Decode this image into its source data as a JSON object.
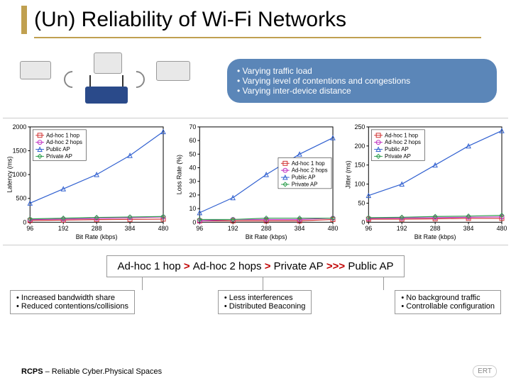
{
  "title": "(Un) Reliability of  Wi-Fi Networks",
  "callout": {
    "items": [
      "Varying traffic load",
      "Varying level of contentions and congestions",
      "Varying inter-device distance"
    ],
    "bg": "#5b86b8"
  },
  "charts": [
    {
      "ylabel": "Latency (ms)",
      "xlabel": "Bit Rate (kbps)",
      "ylim": [
        0,
        2000
      ],
      "yticks": [
        0,
        500,
        1000,
        1500,
        2000
      ],
      "xlim": [
        96,
        480
      ],
      "xticks": [
        96,
        192,
        288,
        384,
        480
      ],
      "legend_pos": "top-left",
      "series": [
        {
          "name": "Ad-hoc 1 hop",
          "color": "#d03030",
          "marker": "square",
          "data": [
            [
              96,
              35
            ],
            [
              192,
              45
            ],
            [
              288,
              55
            ],
            [
              384,
              60
            ],
            [
              480,
              65
            ]
          ]
        },
        {
          "name": "Ad-hoc 2 hops",
          "color": "#c030c0",
          "marker": "circle",
          "data": [
            [
              96,
              55
            ],
            [
              192,
              65
            ],
            [
              288,
              80
            ],
            [
              384,
              95
            ],
            [
              480,
              110
            ]
          ]
        },
        {
          "name": "Public AP",
          "color": "#3060d0",
          "marker": "triangle",
          "data": [
            [
              96,
              400
            ],
            [
              192,
              700
            ],
            [
              288,
              1000
            ],
            [
              384,
              1400
            ],
            [
              480,
              1900
            ]
          ]
        },
        {
          "name": "Private AP",
          "color": "#30a050",
          "marker": "diamond",
          "data": [
            [
              96,
              70
            ],
            [
              192,
              85
            ],
            [
              288,
              100
            ],
            [
              384,
              110
            ],
            [
              480,
              120
            ]
          ]
        }
      ]
    },
    {
      "ylabel": "Loss Rate (%)",
      "xlabel": "Bit Rate (kbps)",
      "ylim": [
        0,
        70
      ],
      "yticks": [
        0,
        10,
        20,
        30,
        40,
        50,
        60,
        70
      ],
      "xlim": [
        96,
        480
      ],
      "xticks": [
        96,
        192,
        288,
        384,
        480
      ],
      "legend_pos": "mid-right",
      "series": [
        {
          "name": "Ad-hoc 1 hop",
          "color": "#d03030",
          "marker": "square",
          "data": [
            [
              96,
              1
            ],
            [
              192,
              1
            ],
            [
              288,
              1
            ],
            [
              384,
              1
            ],
            [
              480,
              2
            ]
          ]
        },
        {
          "name": "Ad-hoc 2 hops",
          "color": "#c030c0",
          "marker": "circle",
          "data": [
            [
              96,
              1
            ],
            [
              192,
              2
            ],
            [
              288,
              2
            ],
            [
              384,
              2
            ],
            [
              480,
              3
            ]
          ]
        },
        {
          "name": "Public AP",
          "color": "#3060d0",
          "marker": "triangle",
          "data": [
            [
              96,
              7
            ],
            [
              192,
              18
            ],
            [
              288,
              35
            ],
            [
              384,
              50
            ],
            [
              480,
              62
            ]
          ]
        },
        {
          "name": "Private AP",
          "color": "#30a050",
          "marker": "diamond",
          "data": [
            [
              96,
              2
            ],
            [
              192,
              2
            ],
            [
              288,
              3
            ],
            [
              384,
              3
            ],
            [
              480,
              3
            ]
          ]
        }
      ]
    },
    {
      "ylabel": "Jitter (ms)",
      "xlabel": "Bit Rate (kbps)",
      "ylim": [
        0,
        250
      ],
      "yticks": [
        0,
        50,
        100,
        150,
        200,
        250
      ],
      "xlim": [
        96,
        480
      ],
      "xticks": [
        96,
        192,
        288,
        384,
        480
      ],
      "legend_pos": "top-left",
      "series": [
        {
          "name": "Ad-hoc 1 hop",
          "color": "#d03030",
          "marker": "square",
          "data": [
            [
              96,
              8
            ],
            [
              192,
              8
            ],
            [
              288,
              9
            ],
            [
              384,
              10
            ],
            [
              480,
              10
            ]
          ]
        },
        {
          "name": "Ad-hoc 2 hops",
          "color": "#c030c0",
          "marker": "circle",
          "data": [
            [
              96,
              10
            ],
            [
              192,
              11
            ],
            [
              288,
              12
            ],
            [
              384,
              13
            ],
            [
              480,
              14
            ]
          ]
        },
        {
          "name": "Public AP",
          "color": "#3060d0",
          "marker": "triangle",
          "data": [
            [
              96,
              70
            ],
            [
              192,
              100
            ],
            [
              288,
              150
            ],
            [
              384,
              200
            ],
            [
              480,
              240
            ]
          ]
        },
        {
          "name": "Private AP",
          "color": "#30a050",
          "marker": "diamond",
          "data": [
            [
              96,
              12
            ],
            [
              192,
              13
            ],
            [
              288,
              15
            ],
            [
              384,
              16
            ],
            [
              480,
              18
            ]
          ]
        }
      ]
    }
  ],
  "ranking": {
    "parts": [
      "Ad-hoc 1 hop",
      " > ",
      "Ad-hoc 2 hops",
      " > ",
      "Private AP",
      " >>> ",
      "Public AP"
    ]
  },
  "boxes": [
    {
      "items": [
        "Increased bandwidth share",
        "Reduced contentions/collisions"
      ]
    },
    {
      "items": [
        "Less interferences",
        "Distributed Beaconing"
      ]
    },
    {
      "items": [
        "No background  traffic",
        "Controllable configuration"
      ]
    }
  ],
  "footer": {
    "bold": "RCPS",
    "rest": " – Reliable Cyber.Physical Spaces"
  },
  "logo": "ERT"
}
